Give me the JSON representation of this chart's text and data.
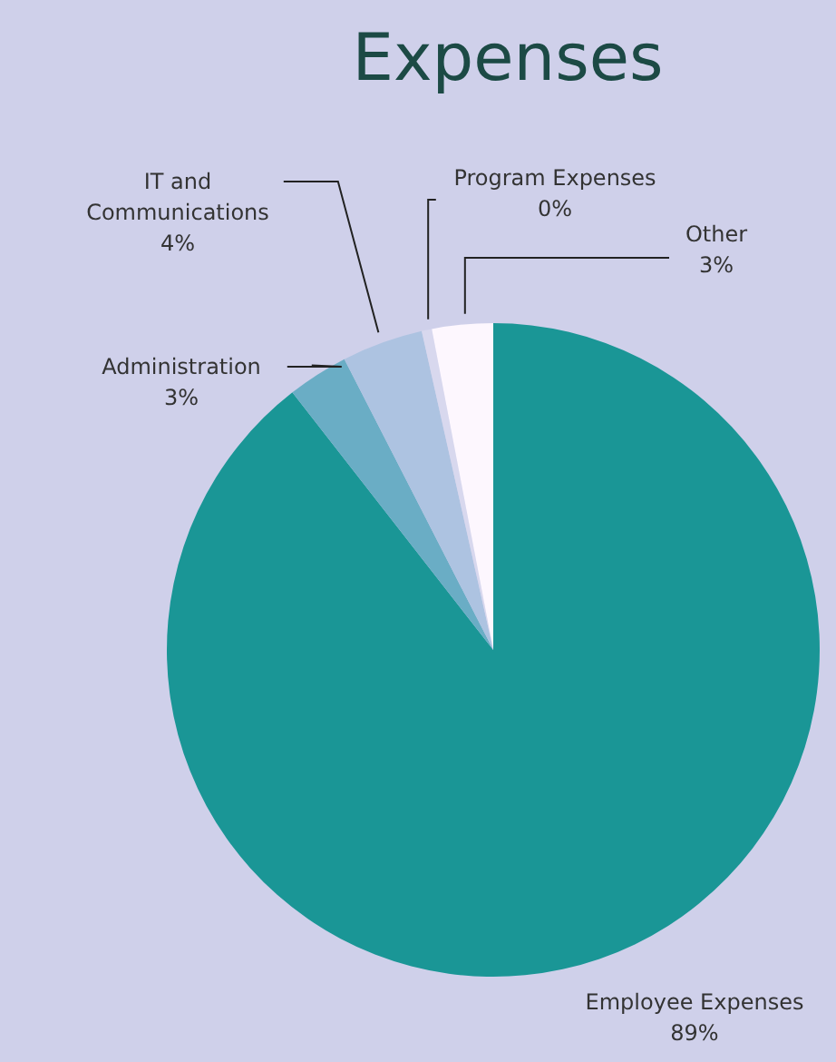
{
  "chart_data": {
    "type": "pie",
    "title": "Expenses",
    "categories": [
      "Employee Expenses",
      "Administration",
      "IT and Communications",
      "Program Expenses",
      "Other"
    ],
    "values": [
      89,
      3,
      4,
      0.5,
      3
    ],
    "value_labels": [
      "89%",
      "3%",
      "4%",
      "0%",
      "3%"
    ],
    "colors": [
      "#1a9696",
      "#6aadc5",
      "#adc3e1",
      "#d8d8ee",
      "#fdf7fe"
    ]
  }
}
